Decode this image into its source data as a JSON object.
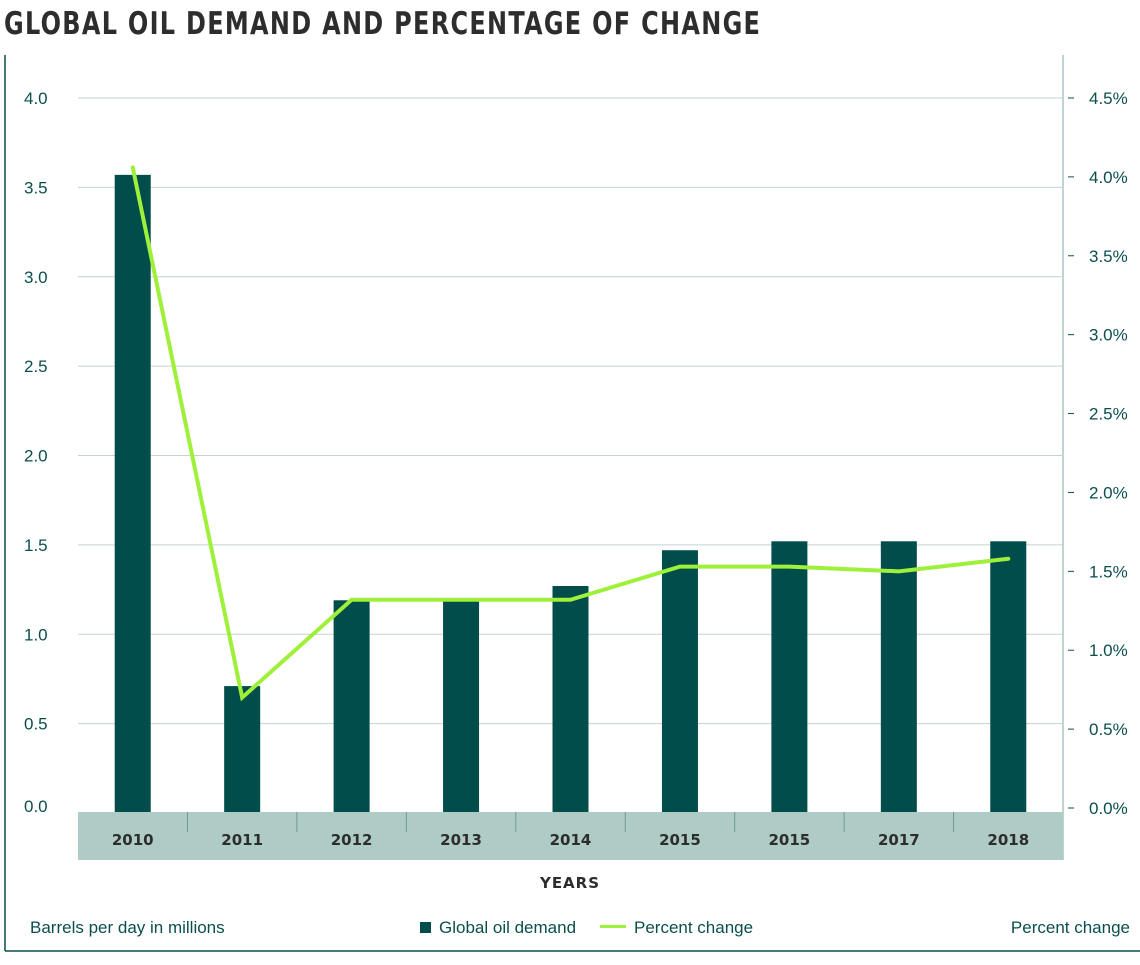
{
  "chart_data": {
    "type": "bar+line",
    "title": "GLOBAL OIL DEMAND AND PERCENTAGE OF CHANGE",
    "xlabel": "YEARS",
    "ylabel_left": "Barrels per day in millions",
    "ylabel_right": "Percent change",
    "categories": [
      "2010",
      "2011",
      "2012",
      "2013",
      "2014",
      "2015",
      "2015",
      "2017",
      "2018"
    ],
    "series": [
      {
        "name": "Global oil demand",
        "type": "bar",
        "axis": "left",
        "color": "#004d4b",
        "values": [
          3.57,
          0.71,
          1.19,
          1.19,
          1.27,
          1.47,
          1.52,
          1.52,
          1.52
        ]
      },
      {
        "name": "Percent change",
        "type": "line",
        "axis": "right",
        "color": "#9ef03a",
        "values": [
          4.06,
          0.7,
          1.32,
          1.32,
          1.32,
          1.53,
          1.53,
          1.5,
          1.58
        ]
      }
    ],
    "ylim_left": [
      0,
      4.0
    ],
    "yticks_left": [
      "0.0",
      "0.5",
      "1.0",
      "1.5",
      "2.0",
      "2.5",
      "3.0",
      "3.5",
      "4.0"
    ],
    "ylim_right": [
      0,
      4.5
    ],
    "yticks_right": [
      "0.0%",
      "0.5%",
      "1.0%",
      "1.5%",
      "2.0%",
      "2.5%",
      "3.0%",
      "3.5%",
      "4.0%",
      "4.5%"
    ],
    "grid": true,
    "legend_placement": "bottom",
    "category_band_color": "#aecbc5"
  }
}
